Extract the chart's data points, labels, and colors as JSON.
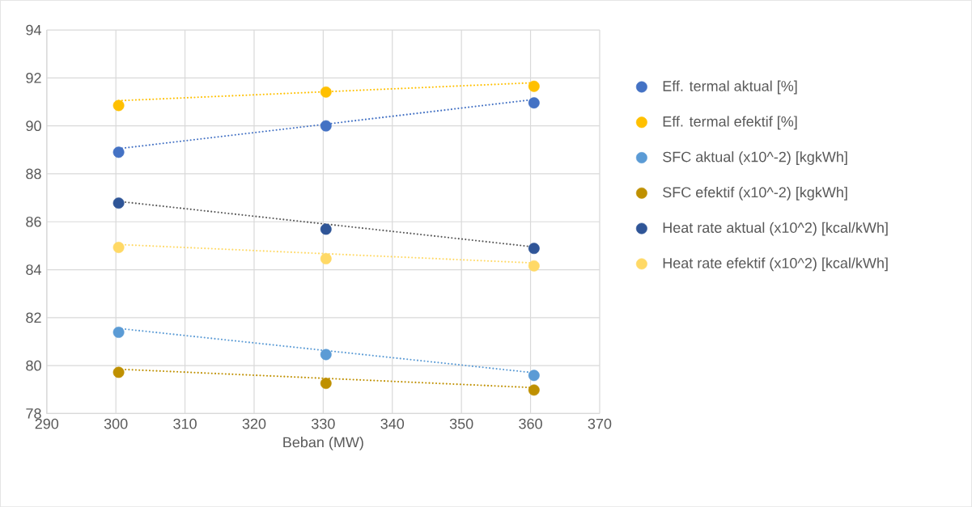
{
  "chart_data": {
    "type": "scatter",
    "xlabel": "Beban (MW)",
    "xlim": [
      290,
      370
    ],
    "xticks": [
      290,
      300,
      310,
      320,
      330,
      340,
      350,
      360,
      370
    ],
    "ylim": [
      78,
      94
    ],
    "yticks": [
      78,
      80,
      82,
      84,
      86,
      88,
      90,
      92,
      94
    ],
    "grid": true,
    "legend": "right",
    "marker": "circle",
    "series": [
      {
        "name": "Eff. termal aktual [%]",
        "color": "#4472c4",
        "x": [
          300.4,
          330.4,
          360.5
        ],
        "values": [
          88.9,
          90.0,
          90.96
        ]
      },
      {
        "name": "Eff. termal efektif  [%]",
        "color": "#ffc000",
        "x": [
          300.4,
          330.4,
          360.5
        ],
        "values": [
          90.85,
          91.41,
          91.65
        ]
      },
      {
        "name": "SFC aktual (x10^-2) [kgkWh]",
        "color": "#5b9bd5",
        "x": [
          300.4,
          330.4,
          360.5
        ],
        "values": [
          81.39,
          80.46,
          79.59
        ]
      },
      {
        "name": "SFC efektif (x10^-2) [kgkWh]",
        "color": "#bf9000",
        "x": [
          300.4,
          330.4,
          360.5
        ],
        "values": [
          79.72,
          79.26,
          78.98
        ]
      },
      {
        "name": "Heat rate aktual (x10^2) [kcal/kWh]",
        "color": "#2f5597",
        "x": [
          300.4,
          330.4,
          360.5
        ],
        "values": [
          86.78,
          85.69,
          84.89
        ]
      },
      {
        "name": "Heat rate efektif (x10^2) [kcal/kWh]",
        "color": "#ffd966",
        "x": [
          300.4,
          330.4,
          360.5
        ],
        "values": [
          84.93,
          84.46,
          84.16
        ]
      },
      {
        "type": "line",
        "line_style": "dotted",
        "marker": "none",
        "color": "#4472c4",
        "x": [
          300.4,
          360.5
        ],
        "values": [
          89.05,
          91.1
        ]
      },
      {
        "type": "line",
        "line_style": "dotted",
        "marker": "none",
        "color": "#ffc000",
        "x": [
          300.4,
          360.5
        ],
        "values": [
          91.05,
          91.8
        ]
      },
      {
        "type": "line",
        "line_style": "dotted",
        "marker": "none",
        "color": "#5b9bd5",
        "x": [
          300.4,
          360.5
        ],
        "values": [
          81.55,
          79.7
        ]
      },
      {
        "type": "line",
        "line_style": "dotted",
        "marker": "none",
        "color": "#bf9000",
        "x": [
          300.4,
          360.5
        ],
        "values": [
          79.85,
          79.08
        ]
      },
      {
        "type": "line",
        "line_style": "dotted",
        "marker": "none",
        "color": "#595959",
        "x": [
          300.4,
          360.5
        ],
        "values": [
          86.85,
          84.95
        ]
      },
      {
        "type": "line",
        "line_style": "dotted",
        "marker": "none",
        "color": "#ffd966",
        "x": [
          300.4,
          360.5
        ],
        "values": [
          85.05,
          84.28
        ]
      }
    ]
  }
}
